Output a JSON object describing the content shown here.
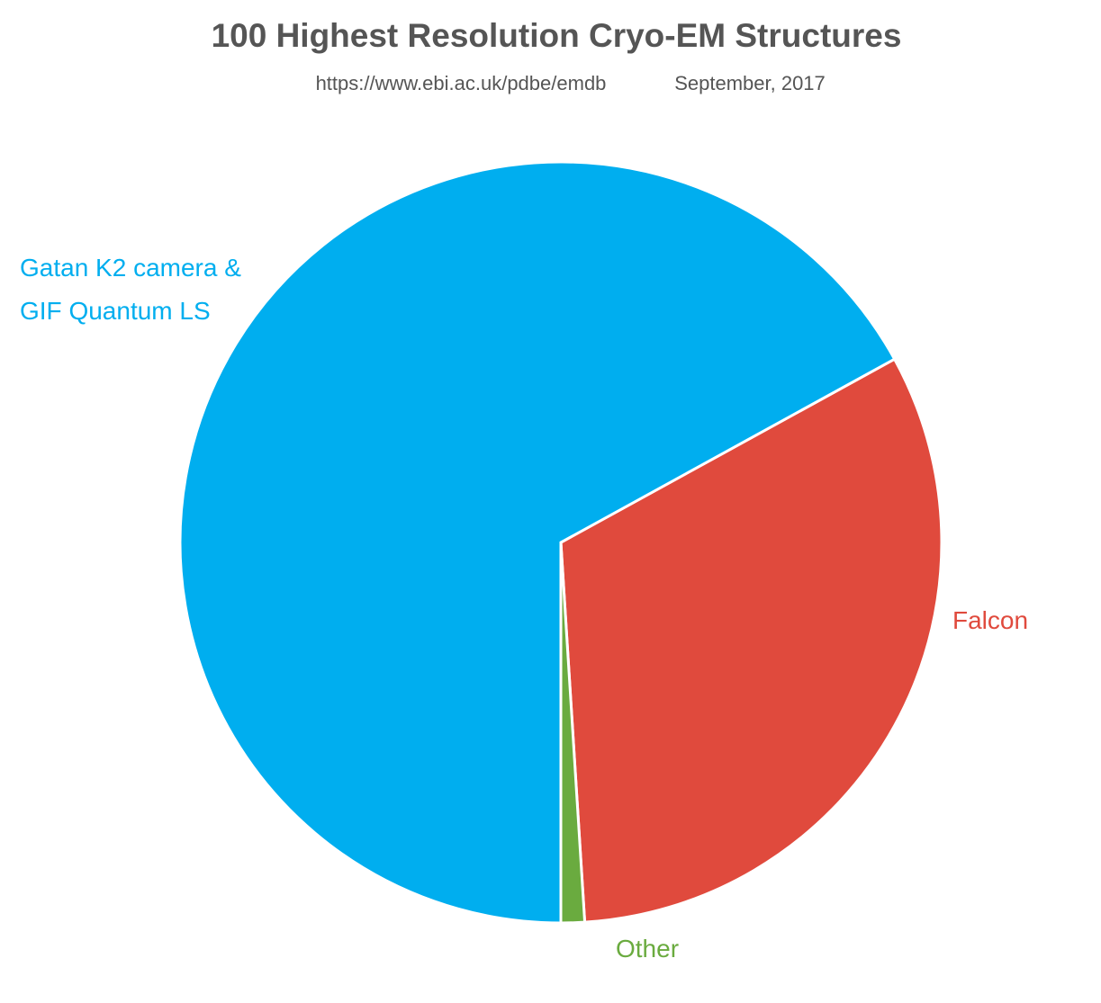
{
  "chart_data": {
    "type": "pie",
    "title": "100 Highest Resolution Cryo-EM Structures",
    "subtitle": "https://www.ebi.ac.uk/pdbe/emdb",
    "date": "September, 2017",
    "categories": [
      "Falcon",
      "Other",
      "Gatan K2 camera & GIF Quantum LS"
    ],
    "values": [
      32,
      1,
      67
    ],
    "colors": [
      "#e04a3d",
      "#6aab3f",
      "#00aeef"
    ]
  }
}
